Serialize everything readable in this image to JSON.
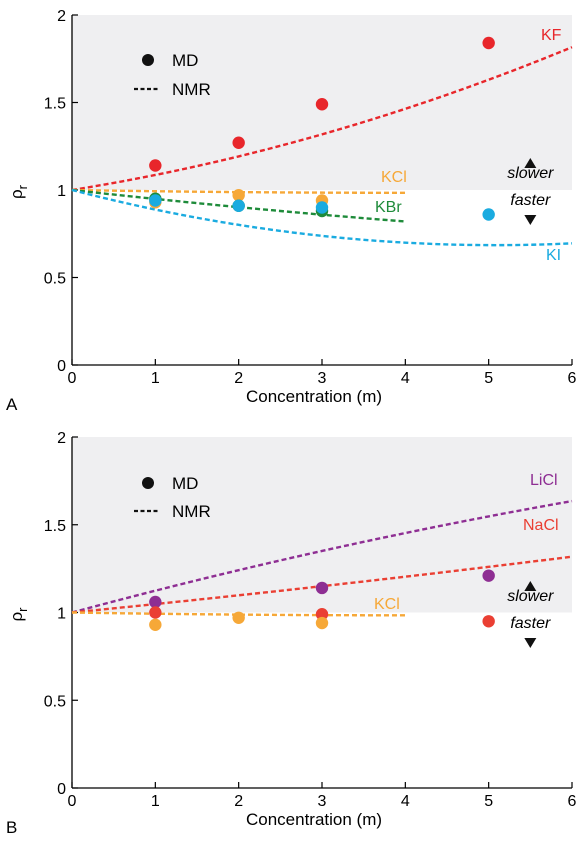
{
  "chart_data": [
    {
      "type": "scatter",
      "panel_label": "A",
      "xlabel": "Concentration (m)",
      "ylabel": "ρ",
      "ylabel_sub": "r",
      "xlim": [
        0,
        6
      ],
      "ylim": [
        0,
        2
      ],
      "xticks": [
        "0",
        "1",
        "2",
        "3",
        "4",
        "5",
        "6"
      ],
      "yticks": [
        "0",
        "0.5",
        "1",
        "1.5",
        "2"
      ],
      "shaded_region_y": [
        1,
        2
      ],
      "legend": {
        "md": "MD",
        "nmr": "NMR",
        "placement": "top-left"
      },
      "annotations": {
        "slower": "slower",
        "faster": "faster"
      },
      "series": [
        {
          "name": "KF",
          "color": "#e8262b",
          "md": [
            [
              1,
              1.14
            ],
            [
              2,
              1.27
            ],
            [
              3,
              1.49
            ],
            [
              5,
              1.84
            ]
          ],
          "nmr_coef": [
            1,
            0.076,
            0.01
          ],
          "nmr_range": [
            0,
            6
          ]
        },
        {
          "name": "KCl",
          "color": "#f6a838",
          "md": [
            [
              1,
              0.93
            ],
            [
              2,
              0.97
            ],
            [
              3,
              0.94
            ]
          ],
          "nmr_coef": [
            1,
            -0.008,
            0.001
          ],
          "nmr_range": [
            0,
            4
          ]
        },
        {
          "name": "KBr",
          "color": "#1e8b3a",
          "md": [
            [
              1,
              0.95
            ],
            [
              2,
              0.91
            ],
            [
              3,
              0.88
            ]
          ],
          "nmr_coef": [
            1,
            -0.053,
            0.002
          ],
          "nmr_range": [
            0,
            4
          ]
        },
        {
          "name": "KI",
          "color": "#1aabe0",
          "md": [
            [
              1,
              0.94
            ],
            [
              2,
              0.91
            ],
            [
              3,
              0.9
            ],
            [
              5,
              0.86
            ]
          ],
          "nmr_coef": [
            1,
            -0.124,
            0.0122
          ],
          "nmr_range": [
            0,
            6
          ]
        }
      ]
    },
    {
      "type": "scatter",
      "panel_label": "B",
      "xlabel": "Concentration (m)",
      "ylabel": "ρ",
      "ylabel_sub": "r",
      "xlim": [
        0,
        6
      ],
      "ylim": [
        0,
        2
      ],
      "xticks": [
        "0",
        "1",
        "2",
        "3",
        "4",
        "5",
        "6"
      ],
      "yticks": [
        "0",
        "0.5",
        "1",
        "1.5",
        "2"
      ],
      "shaded_region_y": [
        1,
        2
      ],
      "legend": {
        "md": "MD",
        "nmr": "NMR",
        "placement": "top-left"
      },
      "annotations": {
        "slower": "slower",
        "faster": "faster"
      },
      "series": [
        {
          "name": "LiCl",
          "color": "#8e2e93",
          "md": [
            [
              1,
              1.06
            ],
            [
              3,
              1.14
            ],
            [
              5,
              1.21
            ]
          ],
          "nmr_coef": [
            1,
            0.128,
            -0.0037
          ],
          "nmr_range": [
            0,
            6
          ]
        },
        {
          "name": "NaCl",
          "color": "#ea3f33",
          "md": [
            [
              1,
              1.0
            ],
            [
              3,
              0.99
            ],
            [
              5,
              0.95
            ]
          ],
          "nmr_coef": [
            1,
            0.047,
            0.001
          ],
          "nmr_range": [
            0,
            6
          ]
        },
        {
          "name": "KCl",
          "color": "#f6a838",
          "md": [
            [
              1,
              0.93
            ],
            [
              2,
              0.97
            ],
            [
              3,
              0.94
            ]
          ],
          "nmr_coef": [
            1,
            -0.008,
            0.001
          ],
          "nmr_range": [
            0,
            4
          ]
        }
      ]
    }
  ]
}
